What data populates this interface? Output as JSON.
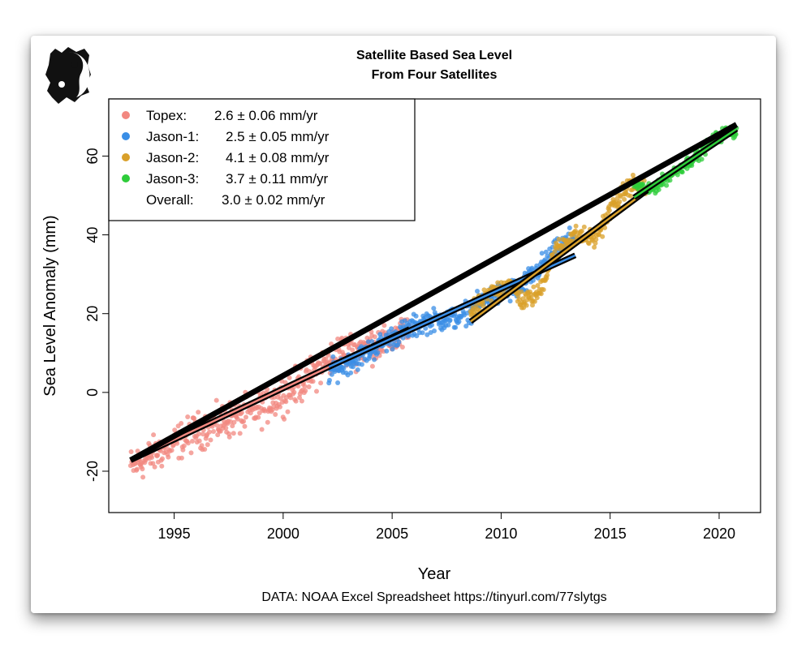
{
  "chart_data": {
    "type": "scatter",
    "title": "Satellite Based Sea Level",
    "subtitle": "From Four Satellites",
    "xlabel": "Year",
    "ylabel": "Sea Level Anomaly (mm)",
    "caption": "DATA: NOAA Excel Spreadsheet https://tinyurl.com/77slytgs",
    "xlim": [
      1992.0,
      2021.9
    ],
    "ylim": [
      -30.5,
      74.5
    ],
    "xticks": [
      1995,
      2000,
      2005,
      2010,
      2015,
      2020
    ],
    "yticks": [
      -20,
      0,
      20,
      40,
      60
    ],
    "legend_position": "top-left",
    "series": [
      {
        "name": "Topex",
        "legend_label": "Topex:",
        "rate": "2.6 ± 0.06 mm/yr",
        "color": "#F28880",
        "x_range": [
          1993.0,
          2005.8
        ],
        "trend": [
          [
            1993.0,
            -17.2
          ],
          [
            2005.8,
            16.1
          ]
        ],
        "anchors": [
          [
            1993.0,
            -19
          ],
          [
            1996.0,
            -10
          ],
          [
            1999.0,
            -4
          ],
          [
            2001.0,
            3
          ],
          [
            2002.5,
            10
          ],
          [
            2004.0,
            12
          ],
          [
            2005.8,
            15
          ]
        ],
        "noise": 3.5
      },
      {
        "name": "Jason-1",
        "legend_label": "Jason-1:",
        "rate": "2.5 ± 0.05 mm/yr",
        "color": "#3A8EE6",
        "x_range": [
          2002.1,
          2013.4
        ],
        "trend": [
          [
            2002.1,
            6.5
          ],
          [
            2013.4,
            34.8
          ]
        ],
        "anchors": [
          [
            2002.1,
            5
          ],
          [
            2003.5,
            9
          ],
          [
            2005.0,
            14
          ],
          [
            2006.5,
            18
          ],
          [
            2008.0,
            19
          ],
          [
            2009.5,
            24
          ],
          [
            2011.0,
            27
          ],
          [
            2012.0,
            33
          ],
          [
            2013.4,
            40
          ]
        ],
        "noise": 2.2
      },
      {
        "name": "Jason-2",
        "legend_label": "Jason-2:",
        "rate": "4.1 ± 0.08 mm/yr",
        "color": "#D9A02A",
        "x_range": [
          2008.6,
          2016.7
        ],
        "trend": [
          [
            2008.6,
            18.0
          ],
          [
            2016.7,
            51.3
          ]
        ],
        "anchors": [
          [
            2008.6,
            20
          ],
          [
            2009.5,
            25
          ],
          [
            2010.3,
            28
          ],
          [
            2011.0,
            23
          ],
          [
            2011.7,
            25
          ],
          [
            2012.5,
            36
          ],
          [
            2013.3,
            40
          ],
          [
            2014.3,
            39
          ],
          [
            2015.2,
            48
          ],
          [
            2016.0,
            53
          ],
          [
            2016.7,
            51
          ]
        ],
        "noise": 1.8
      },
      {
        "name": "Jason-3",
        "legend_label": "Jason-3:",
        "rate": "3.7 ± 0.11 mm/yr",
        "color": "#2ECC3A",
        "x_range": [
          2016.1,
          2020.8
        ],
        "trend": [
          [
            2016.1,
            49.5
          ],
          [
            2020.8,
            66.9
          ]
        ],
        "anchors": [
          [
            2016.1,
            53
          ],
          [
            2016.8,
            51
          ],
          [
            2017.5,
            54
          ],
          [
            2018.2,
            57
          ],
          [
            2019.0,
            60
          ],
          [
            2019.7,
            64
          ],
          [
            2020.3,
            66
          ],
          [
            2020.8,
            66
          ]
        ],
        "noise": 1.2
      }
    ],
    "overall": {
      "name": "Overall",
      "legend_label": "Overall:",
      "rate": "3.0 ± 0.02 mm/yr",
      "trend": [
        [
          1993.0,
          -17.2
        ],
        [
          2020.8,
          68.0
        ]
      ]
    }
  },
  "logo": {
    "name": "yin-yang-logo"
  }
}
